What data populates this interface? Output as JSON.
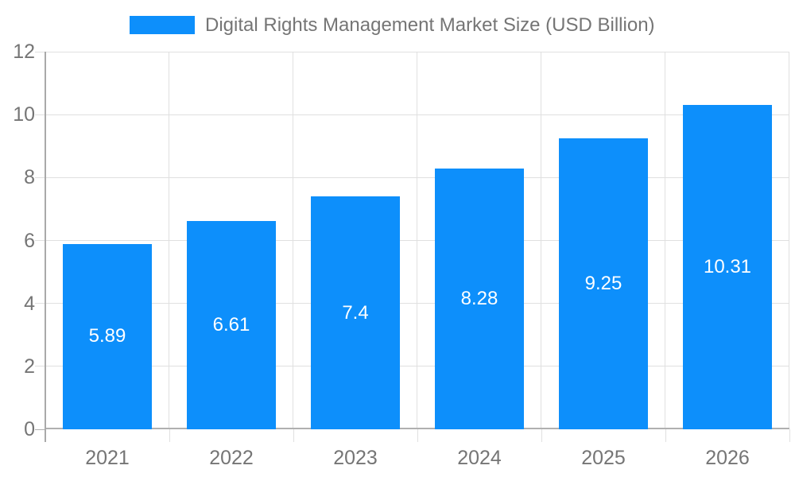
{
  "chart_data": {
    "type": "bar",
    "title": "Digital Rights Management Market Size (USD Billion)",
    "legend_position": "top",
    "categories": [
      "2021",
      "2022",
      "2023",
      "2024",
      "2025",
      "2026"
    ],
    "values": [
      5.89,
      6.61,
      7.4,
      8.28,
      9.25,
      10.31
    ],
    "value_labels": [
      "5.89",
      "6.61",
      "7.4",
      "8.28",
      "9.25",
      "10.31"
    ],
    "xlabel": "",
    "ylabel": "",
    "ylim": [
      0,
      12
    ],
    "yticks": [
      0,
      2,
      4,
      6,
      8,
      10,
      12
    ],
    "grid": true,
    "colors": {
      "bar": "#0d8ffb",
      "axis_label": "#757575",
      "legend_text": "#757575",
      "gridline": "#e0e0e0",
      "axis_line": "#a9a9a9",
      "baseline": "#b0b0b0",
      "value_label": "#ffffff",
      "background": "#ffffff"
    }
  }
}
